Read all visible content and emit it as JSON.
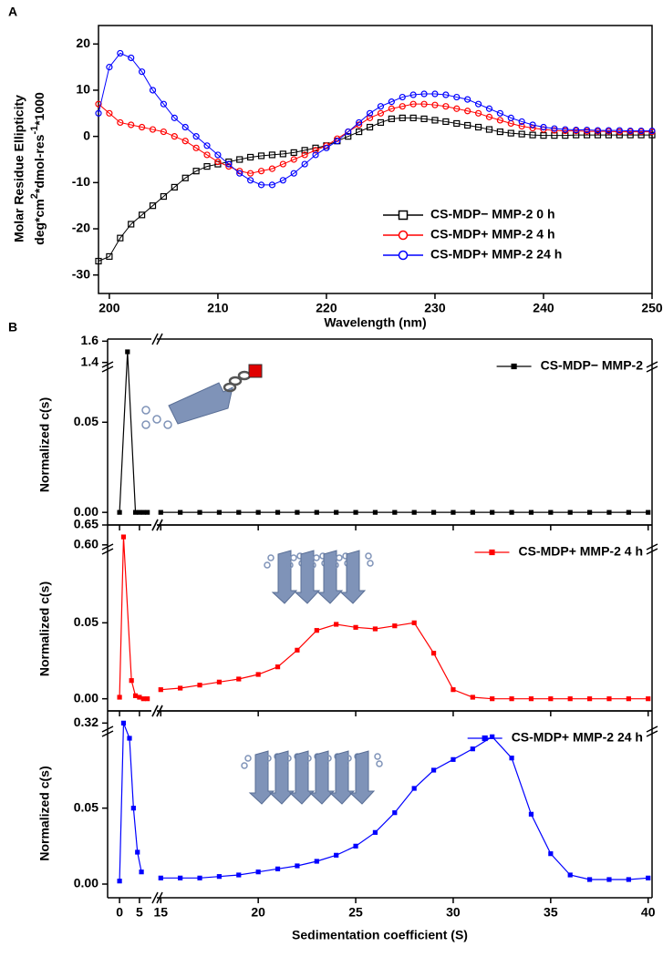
{
  "chart_data": [
    {
      "type": "line",
      "panel_label": "A",
      "x_label": "Wavelength (nm)",
      "y_label": [
        "Molar Residue Ellipticity",
        [
          "deg*cm",
          "2",
          "*dmol-res",
          "-1",
          "*1000"
        ]
      ],
      "xlim": [
        199,
        250
      ],
      "xticks": [
        200,
        210,
        220,
        230,
        240,
        250
      ],
      "ylim": [
        -34,
        24
      ],
      "yticks": [
        -30,
        -20,
        -10,
        0,
        10,
        20
      ],
      "legend": "lower right",
      "x": [
        199,
        200,
        201,
        202,
        203,
        204,
        205,
        206,
        207,
        208,
        209,
        210,
        211,
        212,
        213,
        214,
        215,
        216,
        217,
        218,
        219,
        220,
        221,
        222,
        223,
        224,
        225,
        226,
        227,
        228,
        229,
        230,
        231,
        232,
        233,
        234,
        235,
        236,
        237,
        238,
        239,
        240,
        241,
        242,
        243,
        244,
        245,
        246,
        247,
        248,
        249,
        250
      ],
      "series": [
        {
          "name": "CS-MDP− MMP-2 0 h",
          "color": "#000000",
          "marker": "square",
          "values": [
            -27,
            -26,
            -22,
            -19,
            -17,
            -15,
            -13,
            -11,
            -9,
            -7.5,
            -6.5,
            -6,
            -5.5,
            -5,
            -4.5,
            -4.2,
            -4,
            -3.8,
            -3.5,
            -3,
            -2.5,
            -2,
            -1,
            0,
            1,
            2,
            3,
            3.8,
            4,
            4,
            3.8,
            3.5,
            3.2,
            2.8,
            2.4,
            2,
            1.5,
            1,
            0.7,
            0.5,
            0.3,
            0.2,
            0.2,
            0.2,
            0.3,
            0.3,
            0.3,
            0.3,
            0.3,
            0.3,
            0.3,
            0.3
          ]
        },
        {
          "name": "CS-MDP+ MMP-2 4 h",
          "color": "#ff0000",
          "marker": "circle",
          "values": [
            7,
            5,
            3,
            2.5,
            2,
            1.5,
            1,
            0,
            -1,
            -2.5,
            -4,
            -5.5,
            -6.5,
            -7.5,
            -8,
            -7.5,
            -7,
            -6,
            -5,
            -4,
            -3,
            -2,
            -0.5,
            1,
            2.5,
            4,
            5,
            6,
            6.5,
            7,
            7,
            6.8,
            6.5,
            6,
            5.5,
            5,
            4.2,
            3.5,
            2.8,
            2.2,
            1.8,
            1.5,
            1.3,
            1.2,
            1.2,
            1.1,
            1.1,
            1.1,
            1,
            1,
            1,
            1
          ]
        },
        {
          "name": "CS-MDP+ MMP-2 24 h",
          "color": "#0000ff",
          "marker": "circle",
          "values": [
            5,
            15,
            18,
            17,
            14,
            10,
            7,
            4,
            2,
            0,
            -2,
            -4,
            -6,
            -8,
            -9.5,
            -10.5,
            -10.5,
            -9.5,
            -8,
            -6,
            -4,
            -2.5,
            -1,
            1,
            3,
            5,
            6.5,
            7.5,
            8.5,
            9,
            9.2,
            9.2,
            9,
            8.5,
            8,
            7,
            6,
            5,
            4,
            3.2,
            2.5,
            2,
            1.7,
            1.5,
            1.4,
            1.4,
            1.3,
            1.3,
            1.3,
            1.2,
            1.2,
            1.2
          ]
        }
      ]
    },
    {
      "type": "line",
      "panel_label": "B",
      "y_label": "Normalized c(s)",
      "y_segments": [
        {
          "lim": [
            -0.007,
            0.082
          ],
          "ticks": [
            {
              "value": 0,
              "label": "0.00"
            },
            0.05
          ]
        },
        {
          "lim": [
            1.38,
            1.62
          ],
          "ticks": [
            1.4,
            1.6
          ]
        }
      ],
      "series": [
        {
          "name": "CS-MDP− MMP-2",
          "color": "#000000",
          "x": [
            0,
            2,
            4,
            5,
            6,
            7,
            15,
            16,
            17,
            18,
            19,
            20,
            21,
            22,
            23,
            24,
            25,
            26,
            27,
            28,
            29,
            30,
            31,
            32,
            33,
            34,
            35,
            36,
            37,
            38,
            39,
            40
          ],
          "values": [
            0,
            1.5,
            0,
            0,
            0,
            0,
            0,
            0,
            0,
            0,
            0,
            0,
            0,
            0,
            0,
            0,
            0,
            0,
            0,
            0,
            0,
            0,
            0,
            0,
            0,
            0,
            0,
            0,
            0,
            0,
            0,
            0
          ]
        }
      ]
    },
    {
      "type": "line",
      "y_label": "Normalized c(s)",
      "y_segments": [
        {
          "lim": [
            -0.008,
            0.1
          ],
          "ticks": [
            {
              "value": 0,
              "label": "0.00"
            },
            0.05
          ]
        },
        {
          "lim": [
            0.595,
            0.65
          ],
          "ticks": [
            {
              "value": 0.6,
              "label": "0.60"
            },
            0.65
          ]
        }
      ],
      "series": [
        {
          "name": "CS-MDP+ MMP-2 4 h",
          "color": "#ff0000",
          "x": [
            0,
            1,
            3,
            4,
            5,
            6,
            7,
            15,
            16,
            17,
            18,
            19,
            20,
            21,
            22,
            23,
            24,
            25,
            26,
            27,
            28,
            29,
            30,
            31,
            32,
            33,
            34,
            35,
            36,
            37,
            38,
            39,
            40
          ],
          "values": [
            0.001,
            0.62,
            0.012,
            0.002,
            0.001,
            0,
            0,
            0.006,
            0.007,
            0.009,
            0.011,
            0.013,
            0.016,
            0.021,
            0.032,
            0.045,
            0.049,
            0.047,
            0.046,
            0.048,
            0.05,
            0.03,
            0.006,
            0.001,
            0,
            0,
            0,
            0,
            0,
            0,
            0,
            0,
            0
          ]
        }
      ]
    },
    {
      "type": "line",
      "y_label": "Normalized c(s)",
      "x_label": "Sedimentation coefficient (S)",
      "x_segments": [
        {
          "lim": [
            -3,
            8
          ],
          "ticks": [
            0,
            5
          ]
        },
        {
          "lim": [
            14.8,
            40.2
          ],
          "ticks": [
            15,
            20,
            25,
            30,
            35,
            40
          ]
        }
      ],
      "y_segments": [
        {
          "lim": [
            -0.009,
            0.102
          ],
          "ticks": [
            {
              "value": 0,
              "label": "0.00"
            },
            0.05
          ]
        },
        {
          "lim": [
            0.315,
            0.33
          ],
          "ticks": [
            0.32
          ]
        }
      ],
      "series": [
        {
          "name": "CS-MDP+ MMP-2 24 h",
          "color": "#0000ff",
          "x": [
            0,
            1,
            2.5,
            3.5,
            4.5,
            5.5,
            15,
            16,
            17,
            18,
            19,
            20,
            21,
            22,
            23,
            24,
            25,
            26,
            27,
            28,
            29,
            30,
            31,
            32,
            33,
            34,
            35,
            36,
            37,
            38,
            39,
            40
          ],
          "values": [
            0.002,
            0.32,
            0.096,
            0.05,
            0.021,
            0.008,
            0.004,
            0.004,
            0.004,
            0.005,
            0.006,
            0.008,
            0.01,
            0.012,
            0.015,
            0.019,
            0.025,
            0.034,
            0.047,
            0.063,
            0.075,
            0.082,
            0.089,
            0.097,
            0.083,
            0.046,
            0.02,
            0.006,
            0.003,
            0.003,
            0.003,
            0.004
          ]
        }
      ]
    }
  ]
}
